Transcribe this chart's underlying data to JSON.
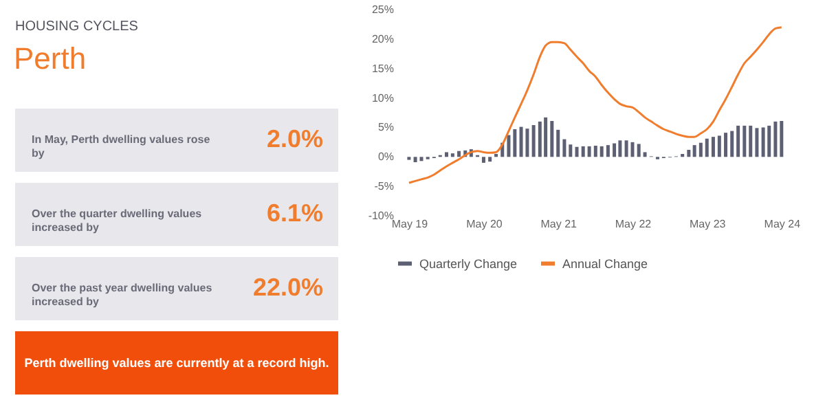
{
  "chart_data": [
    {
      "type": "other",
      "title": "HOUSING CYCLES",
      "subtitle": "Perth",
      "annotations": [
        "In May, Perth dwelling values rose by",
        "2.0%",
        "Over the quarter dwelling values increased by",
        "6.1%",
        "Over the past year dwelling values increased by",
        "22.0%",
        "Perth dwelling values are currently at a record high."
      ]
    },
    {
      "type": "bar",
      "x": [
        "2019-05",
        "2019-06",
        "2019-07",
        "2019-08",
        "2019-09",
        "2019-10",
        "2019-11",
        "2019-12",
        "2020-01",
        "2020-02",
        "2020-03",
        "2020-04",
        "2020-05",
        "2020-06",
        "2020-07",
        "2020-08",
        "2020-09",
        "2020-10",
        "2020-11",
        "2020-12",
        "2021-01",
        "2021-02",
        "2021-03",
        "2021-04",
        "2021-05",
        "2021-06",
        "2021-07",
        "2021-08",
        "2021-09",
        "2021-10",
        "2021-11",
        "2021-12",
        "2022-01",
        "2022-02",
        "2022-03",
        "2022-04",
        "2022-05",
        "2022-06",
        "2022-07",
        "2022-08",
        "2022-09",
        "2022-10",
        "2022-11",
        "2022-12",
        "2023-01",
        "2023-02",
        "2023-03",
        "2023-04",
        "2023-05",
        "2023-06",
        "2023-07",
        "2023-08",
        "2023-09",
        "2023-10",
        "2023-11",
        "2023-12",
        "2024-01",
        "2024-02",
        "2024-03",
        "2024-04",
        "2024-05"
      ],
      "series": [
        {
          "name": "Quarterly Change",
          "type": "bar",
          "color": "#5c6072",
          "values": [
            -0.5,
            -0.9,
            -0.7,
            -0.4,
            -0.2,
            0.3,
            0.8,
            0.6,
            1.0,
            1.1,
            1.3,
            0.3,
            -1.0,
            -0.8,
            0.5,
            2.4,
            3.7,
            4.7,
            5.1,
            4.8,
            5.4,
            6.0,
            6.7,
            6.1,
            4.6,
            3.0,
            2.1,
            1.7,
            1.8,
            1.8,
            1.9,
            1.8,
            2.0,
            2.3,
            2.8,
            2.8,
            2.5,
            2.2,
            0.8,
            0.1,
            -0.4,
            -0.2,
            -0.1,
            0.1,
            0.5,
            1.2,
            2.0,
            2.4,
            3.1,
            3.4,
            3.6,
            4.1,
            4.4,
            5.3,
            5.3,
            5.3,
            4.9,
            5.0,
            5.3,
            6.0,
            6.1
          ]
        },
        {
          "name": "Annual Change",
          "type": "line",
          "color": "#f07d2e",
          "values": [
            -4.4,
            -4.1,
            -3.8,
            -3.5,
            -3.0,
            -2.3,
            -1.6,
            -1.0,
            -0.4,
            0.3,
            0.8,
            1.0,
            0.8,
            0.7,
            0.8,
            2.1,
            4.4,
            6.7,
            9.0,
            11.3,
            14.0,
            17.0,
            18.9,
            19.5,
            19.5,
            19.3,
            18.2,
            17.0,
            15.9,
            14.6,
            13.6,
            12.2,
            10.9,
            9.8,
            9.0,
            8.6,
            8.4,
            7.6,
            6.7,
            6.0,
            5.3,
            4.7,
            4.3,
            3.9,
            3.6,
            3.4,
            3.4,
            4.0,
            4.7,
            6.0,
            7.9,
            9.8,
            11.9,
            14.0,
            15.9,
            17.0,
            18.2,
            19.5,
            20.8,
            21.8,
            22.0
          ]
        }
      ],
      "xlim": [
        "2019-04",
        "2024-06"
      ],
      "xticks": [
        {
          "value": "2019-05",
          "label": "May 19"
        },
        {
          "value": "2020-05",
          "label": "May 20"
        },
        {
          "value": "2021-05",
          "label": "May 21"
        },
        {
          "value": "2022-05",
          "label": "May 22"
        },
        {
          "value": "2023-05",
          "label": "May 23"
        },
        {
          "value": "2024-05",
          "label": "May 24"
        }
      ],
      "ylim": [
        -10,
        25
      ],
      "yticks": [
        {
          "value": -10,
          "label": "-10%"
        },
        {
          "value": -5,
          "label": "-5%"
        },
        {
          "value": 0,
          "label": "0%"
        },
        {
          "value": 5,
          "label": "5%"
        },
        {
          "value": 10,
          "label": "10%"
        },
        {
          "value": 15,
          "label": "15%"
        },
        {
          "value": 20,
          "label": "20%"
        },
        {
          "value": 25,
          "label": "25%"
        }
      ],
      "grid": false,
      "legend": "bottom"
    }
  ]
}
